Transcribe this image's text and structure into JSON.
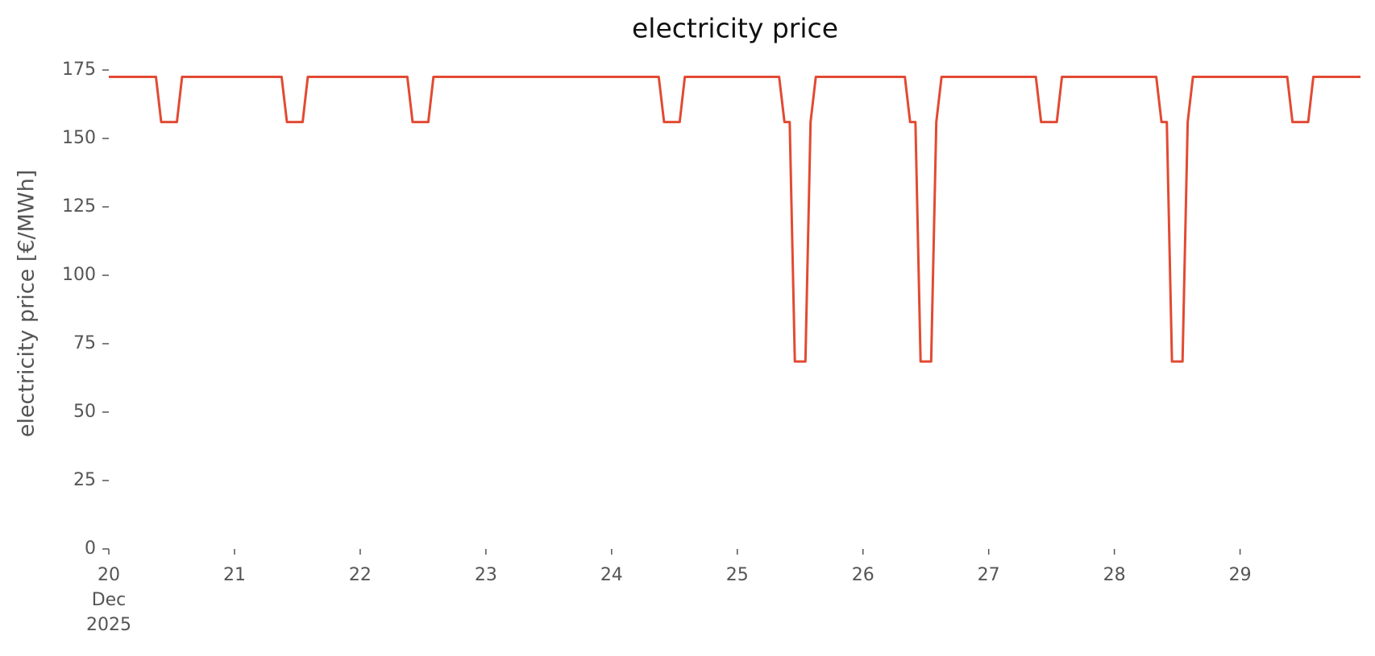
{
  "chart_data": {
    "type": "line",
    "title": "electricity price",
    "y_label": "electricity price [€/MWh]",
    "x": [
      20,
      20.375,
      20.417,
      20.542,
      20.583,
      21.375,
      21.417,
      21.542,
      21.583,
      22.375,
      22.417,
      22.542,
      22.583,
      24.375,
      24.417,
      24.542,
      24.583,
      25.333,
      25.375,
      25.417,
      25.458,
      25.542,
      25.583,
      25.625,
      26.333,
      26.375,
      26.417,
      26.458,
      26.542,
      26.583,
      26.625,
      27.375,
      27.417,
      27.542,
      27.583,
      28.333,
      28.375,
      28.417,
      28.458,
      28.542,
      28.583,
      28.625,
      29.375,
      29.417,
      29.542,
      29.583,
      29.958
    ],
    "series": [
      {
        "name": "electricity price",
        "color": "#e24a33",
        "values": [
          172.5,
          172.5,
          156,
          156,
          172.5,
          172.5,
          156,
          156,
          172.5,
          172.5,
          156,
          156,
          172.5,
          172.5,
          156,
          156,
          172.5,
          172.5,
          156,
          156,
          68.5,
          68.5,
          156,
          172.5,
          172.5,
          156,
          156,
          68.5,
          68.5,
          156,
          172.5,
          172.5,
          156,
          156,
          172.5,
          172.5,
          156,
          156,
          68.5,
          68.5,
          156,
          172.5,
          172.5,
          156,
          156,
          172.5,
          172.5
        ]
      }
    ],
    "xlim": [
      20,
      29.958
    ],
    "xticks": [
      {
        "value": 20,
        "label": "20\nDec\n2025"
      },
      21,
      22,
      23,
      24,
      25,
      26,
      27,
      28,
      29
    ],
    "ylim": [
      0,
      175
    ],
    "yticks": [
      0,
      25,
      50,
      75,
      100,
      125,
      150,
      175
    ],
    "grid": false
  }
}
